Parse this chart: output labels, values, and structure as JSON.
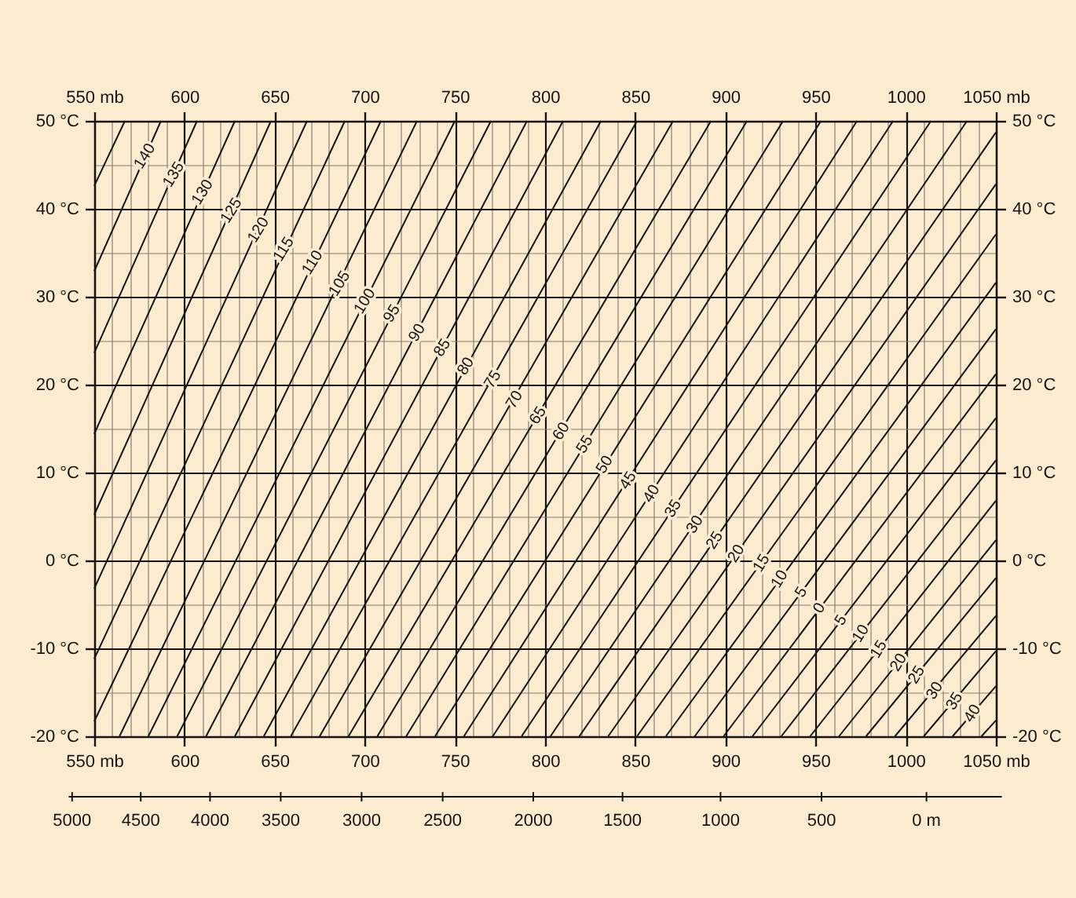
{
  "chart_data": {
    "type": "line",
    "xlim": [
      550,
      1050
    ],
    "xticks": [
      {
        "value": 550,
        "label": "550 mb"
      },
      {
        "value": 560,
        "label": null
      },
      {
        "value": 570,
        "label": null
      },
      {
        "value": 580,
        "label": null
      },
      {
        "value": 590,
        "label": null
      },
      600,
      {
        "value": 610,
        "label": null
      },
      {
        "value": 620,
        "label": null
      },
      {
        "value": 630,
        "label": null
      },
      {
        "value": 640,
        "label": null
      },
      650,
      {
        "value": 660,
        "label": null
      },
      {
        "value": 670,
        "label": null
      },
      {
        "value": 680,
        "label": null
      },
      {
        "value": 690,
        "label": null
      },
      700,
      {
        "value": 710,
        "label": null
      },
      {
        "value": 720,
        "label": null
      },
      {
        "value": 730,
        "label": null
      },
      {
        "value": 740,
        "label": null
      },
      750,
      {
        "value": 760,
        "label": null
      },
      {
        "value": 770,
        "label": null
      },
      {
        "value": 780,
        "label": null
      },
      {
        "value": 790,
        "label": null
      },
      800,
      {
        "value": 810,
        "label": null
      },
      {
        "value": 820,
        "label": null
      },
      {
        "value": 830,
        "label": null
      },
      {
        "value": 840,
        "label": null
      },
      850,
      {
        "value": 860,
        "label": null
      },
      {
        "value": 870,
        "label": null
      },
      {
        "value": 880,
        "label": null
      },
      {
        "value": 890,
        "label": null
      },
      900,
      {
        "value": 910,
        "label": null
      },
      {
        "value": 920,
        "label": null
      },
      {
        "value": 930,
        "label": null
      },
      {
        "value": 940,
        "label": null
      },
      950,
      {
        "value": 960,
        "label": null
      },
      {
        "value": 970,
        "label": null
      },
      {
        "value": 980,
        "label": null
      },
      {
        "value": 990,
        "label": null
      },
      1000,
      {
        "value": 1010,
        "label": null
      },
      {
        "value": 1020,
        "label": null
      },
      {
        "value": 1030,
        "label": null
      },
      {
        "value": 1040,
        "label": null
      },
      {
        "value": 1050,
        "label": "1050 mb"
      }
    ],
    "x2lim": [
      550,
      1050
    ],
    "x2ticks": [
      {
        "value": 550,
        "label": "550 mb"
      },
      600,
      650,
      700,
      750,
      800,
      850,
      900,
      950,
      1000,
      {
        "value": 1050,
        "label": "1050 mb"
      }
    ],
    "ylim": [
      -20,
      50
    ],
    "yticks": [
      {
        "value": -20,
        "label": "-20 °C"
      },
      {
        "value": -15,
        "label": null
      },
      {
        "value": -10,
        "label": "-10 °C"
      },
      {
        "value": -5,
        "label": null
      },
      {
        "value": 0,
        "label": "0 °C"
      },
      {
        "value": 5,
        "label": null
      },
      {
        "value": 10,
        "label": "10 °C"
      },
      {
        "value": 15,
        "label": null
      },
      {
        "value": 20,
        "label": "20 °C"
      },
      {
        "value": 25,
        "label": null
      },
      {
        "value": 30,
        "label": "30 °C"
      },
      {
        "value": 35,
        "label": null
      },
      {
        "value": 40,
        "label": "40 °C"
      },
      {
        "value": 45,
        "label": null
      },
      {
        "value": 50,
        "label": "50 °C"
      }
    ],
    "y2lim": [
      -20,
      50
    ],
    "y2ticks": [
      {
        "value": -20,
        "label": "-20 °C"
      },
      {
        "value": -10,
        "label": "-10 °C"
      },
      {
        "value": 0,
        "label": "0 °C"
      },
      {
        "value": 10,
        "label": "10 °C"
      },
      {
        "value": 20,
        "label": "20 °C"
      },
      {
        "value": 30,
        "label": "30 °C"
      },
      {
        "value": 40,
        "label": "40 °C"
      },
      {
        "value": 50,
        "label": "50 °C"
      }
    ],
    "grid": true,
    "series": [
      {
        "color": "#141414",
        "x": [
          550,
          567
        ],
        "values": [
          42.6,
          50
        ]
      },
      {
        "color": "#141414",
        "x": [
          550,
          587
        ],
        "values": [
          32.9,
          50
        ]
      },
      {
        "color": "#141414",
        "x": [
          550,
          607
        ],
        "values": [
          23.6,
          50
        ]
      },
      {
        "color": "#141414",
        "x": [
          550,
          628
        ],
        "values": [
          14.4,
          50
        ]
      },
      {
        "color": "#141414",
        "x": [
          550,
          648
        ],
        "values": [
          5.2,
          50
        ]
      },
      {
        "color": "#141414",
        "x": [
          550,
          668
        ],
        "values": [
          -3.2,
          50
        ]
      },
      {
        "color": "#141414",
        "x": [
          550,
          689
        ],
        "values": [
          -11.2,
          50
        ]
      },
      {
        "color": "#141414",
        "x": [
          550,
          709
        ],
        "values": [
          -18.3,
          50
        ]
      },
      {
        "color": "#141414",
        "x": [
          564,
          729
        ],
        "values": [
          -20,
          50
        ]
      },
      {
        "color": "#141414",
        "x": [
          580,
          750
        ],
        "values": [
          -20,
          50
        ]
      },
      {
        "color": "#141414",
        "x": [
          596,
          770
        ],
        "values": [
          -20,
          50
        ]
      },
      {
        "color": "#141414",
        "x": [
          612,
          790
        ],
        "values": [
          -20,
          50
        ]
      },
      {
        "color": "#141414",
        "x": [
          628,
          810
        ],
        "values": [
          -20,
          50
        ]
      },
      {
        "color": "#141414",
        "x": [
          644,
          831
        ],
        "values": [
          -20,
          50
        ]
      },
      {
        "color": "#141414",
        "x": [
          659,
          851
        ],
        "values": [
          -20,
          50
        ]
      },
      {
        "color": "#141414",
        "x": [
          675,
          871
        ],
        "values": [
          -20,
          50
        ]
      },
      {
        "color": "#141414",
        "x": [
          691,
          892
        ],
        "values": [
          -20,
          50
        ]
      },
      {
        "color": "#141414",
        "x": [
          707,
          912
        ],
        "values": [
          -20,
          50
        ]
      },
      {
        "color": "#141414",
        "x": [
          723,
          932
        ],
        "values": [
          -20,
          50
        ]
      },
      {
        "color": "#141414",
        "x": [
          739,
          953
        ],
        "values": [
          -20,
          50
        ]
      },
      {
        "color": "#141414",
        "x": [
          755,
          973
        ],
        "values": [
          -20,
          50
        ]
      },
      {
        "color": "#141414",
        "x": [
          771,
          993
        ],
        "values": [
          -20,
          50
        ]
      },
      {
        "color": "#141414",
        "x": [
          787,
          1014
        ],
        "values": [
          -20,
          50
        ]
      },
      {
        "color": "#141414",
        "x": [
          803,
          1034
        ],
        "values": [
          -20,
          50
        ]
      },
      {
        "color": "#141414",
        "x": [
          819,
          1050
        ],
        "values": [
          -20,
          48.7
        ]
      },
      {
        "color": "#141414",
        "x": [
          835,
          1050
        ],
        "values": [
          -20,
          42.8
        ]
      },
      {
        "color": "#141414",
        "x": [
          851,
          1050
        ],
        "values": [
          -20,
          37.1
        ]
      },
      {
        "color": "#141414",
        "x": [
          867,
          1050
        ],
        "values": [
          -20,
          31.6
        ]
      },
      {
        "color": "#141414",
        "x": [
          883,
          1050
        ],
        "values": [
          -20,
          26.3
        ]
      },
      {
        "color": "#141414",
        "x": [
          899,
          1050
        ],
        "values": [
          -20,
          21.2
        ]
      },
      {
        "color": "#141414",
        "x": [
          915,
          1050
        ],
        "values": [
          -20,
          16.2
        ]
      },
      {
        "color": "#141414",
        "x": [
          931,
          1050
        ],
        "values": [
          -20,
          11.4
        ]
      },
      {
        "color": "#141414",
        "x": [
          947,
          1050
        ],
        "values": [
          -20,
          6.8
        ]
      },
      {
        "color": "#141414",
        "x": [
          963,
          1050
        ],
        "values": [
          -20,
          2.3
        ]
      },
      {
        "color": "#141414",
        "x": [
          978,
          1050
        ],
        "values": [
          -20,
          -2.0
        ]
      },
      {
        "color": "#141414",
        "x": [
          994,
          1050
        ],
        "values": [
          -20,
          -6.3
        ]
      },
      {
        "color": "#141414",
        "x": [
          1010,
          1050
        ],
        "values": [
          -20,
          -10.3
        ]
      },
      {
        "color": "#141414",
        "x": [
          1026,
          1050
        ],
        "values": [
          -20,
          -14.3
        ]
      },
      {
        "color": "#141414",
        "x": [
          1042,
          1050
        ],
        "values": [
          -20,
          -18.2
        ]
      }
    ],
    "annotations": [
      {
        "text": "140",
        "x": 578,
        "y": 46.0
      },
      {
        "text": "135",
        "x": 594,
        "y": 43.9
      },
      {
        "text": "130",
        "x": 610,
        "y": 41.9
      },
      {
        "text": "125",
        "x": 626,
        "y": 39.8
      },
      {
        "text": "120",
        "x": 641,
        "y": 37.6
      },
      {
        "text": "115",
        "x": 655,
        "y": 35.4
      },
      {
        "text": "110",
        "x": 671,
        "y": 33.9
      },
      {
        "text": "105",
        "x": 686,
        "y": 31.5
      },
      {
        "text": "100",
        "x": 700,
        "y": 29.5
      },
      {
        "text": "95",
        "x": 715,
        "y": 28.1
      },
      {
        "text": "90",
        "x": 729,
        "y": 25.9
      },
      {
        "text": "85",
        "x": 743,
        "y": 24.2
      },
      {
        "text": "80",
        "x": 756,
        "y": 22.1
      },
      {
        "text": "75",
        "x": 771,
        "y": 20.6
      },
      {
        "text": "70",
        "x": 783,
        "y": 18.3
      },
      {
        "text": "65",
        "x": 796,
        "y": 16.5
      },
      {
        "text": "60",
        "x": 809,
        "y": 14.7
      },
      {
        "text": "55",
        "x": 822,
        "y": 13.2
      },
      {
        "text": "50",
        "x": 833,
        "y": 10.9
      },
      {
        "text": "45",
        "x": 846,
        "y": 9.1
      },
      {
        "text": "40",
        "x": 859,
        "y": 7.6
      },
      {
        "text": "35",
        "x": 871,
        "y": 5.9
      },
      {
        "text": "30",
        "x": 883,
        "y": 4.1
      },
      {
        "text": "25",
        "x": 894,
        "y": 2.3
      },
      {
        "text": "20",
        "x": 906,
        "y": 0.8
      },
      {
        "text": "15",
        "x": 920,
        "y": -0.3
      },
      {
        "text": "10",
        "x": 930,
        "y": -2.1
      },
      {
        "text": "5",
        "x": 942,
        "y": -3.6
      },
      {
        "text": "0",
        "x": 952,
        "y": -5.4
      },
      {
        "text": "5",
        "x": 964,
        "y": -6.8
      },
      {
        "text": "10",
        "x": 975,
        "y": -8.3
      },
      {
        "text": "15",
        "x": 985,
        "y": -10.1
      },
      {
        "text": "20",
        "x": 996,
        "y": -11.6
      },
      {
        "text": "25",
        "x": 1006,
        "y": -13.0
      },
      {
        "text": "30",
        "x": 1016,
        "y": -14.8
      },
      {
        "text": "35",
        "x": 1027,
        "y": -16.0
      },
      {
        "text": "40",
        "x": 1037,
        "y": -17.4
      },
      "5000",
      "4500",
      "4000",
      "3500",
      "3000",
      "2500",
      "2000",
      "1500",
      "1000",
      "500",
      "0 m"
    ]
  }
}
